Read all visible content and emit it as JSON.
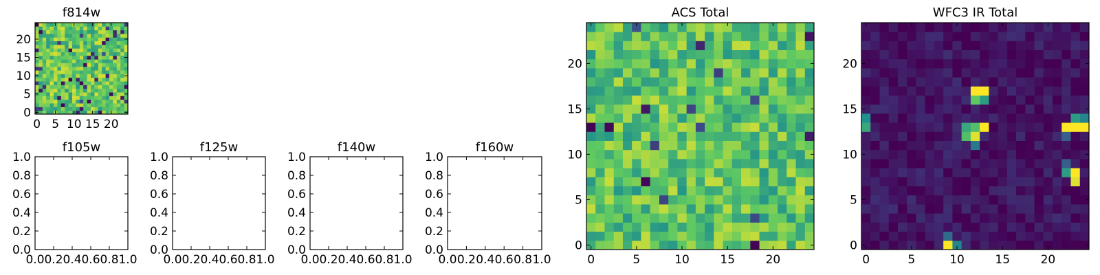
{
  "colormap": [
    "#440154",
    "#3b528b",
    "#21918c",
    "#5ec962",
    "#fde725"
  ],
  "chart_data": [
    {
      "type": "heatmap",
      "title": "f814w",
      "x_ticks": [
        "0",
        "5",
        "10",
        "15",
        "20"
      ],
      "y_ticks": [
        "0",
        "5",
        "10",
        "15",
        "20"
      ],
      "xlim": [
        -0.5,
        24.5
      ],
      "ylim": [
        -0.5,
        24.5
      ],
      "rows": 25,
      "cols": 25,
      "seed": 11,
      "base": 0.74,
      "spread": 0.2,
      "low_fraction": 0.07,
      "hot": []
    },
    {
      "type": "empty",
      "title": "f105w",
      "x_ticks": [
        "0.0",
        "0.2",
        "0.4",
        "0.6",
        "0.8",
        "1.0"
      ],
      "y_ticks": [
        "0.0",
        "0.2",
        "0.4",
        "0.6",
        "0.8",
        "1.0"
      ],
      "xlim": [
        0,
        1
      ],
      "ylim": [
        0,
        1
      ]
    },
    {
      "type": "empty",
      "title": "f125w",
      "x_ticks": [
        "0.0",
        "0.2",
        "0.4",
        "0.6",
        "0.8",
        "1.0"
      ],
      "y_ticks": [
        "0.0",
        "0.2",
        "0.4",
        "0.6",
        "0.8",
        "1.0"
      ],
      "xlim": [
        0,
        1
      ],
      "ylim": [
        0,
        1
      ]
    },
    {
      "type": "empty",
      "title": "f140w",
      "x_ticks": [
        "0.0",
        "0.2",
        "0.4",
        "0.6",
        "0.8",
        "1.0"
      ],
      "y_ticks": [
        "0.0",
        "0.2",
        "0.4",
        "0.6",
        "0.8",
        "1.0"
      ],
      "xlim": [
        0,
        1
      ],
      "ylim": [
        0,
        1
      ]
    },
    {
      "type": "empty",
      "title": "f160w",
      "x_ticks": [
        "0.0",
        "0.2",
        "0.4",
        "0.6",
        "0.8",
        "1.0"
      ],
      "y_ticks": [
        "0.0",
        "0.2",
        "0.4",
        "0.6",
        "0.8",
        "1.0"
      ],
      "xlim": [
        0,
        1
      ],
      "ylim": [
        0,
        1
      ]
    },
    {
      "type": "heatmap",
      "title": "ACS Total",
      "x_ticks": [
        "0",
        "5",
        "10",
        "15",
        "20"
      ],
      "y_ticks": [
        "0",
        "5",
        "10",
        "15",
        "20"
      ],
      "xlim": [
        -0.5,
        24.5
      ],
      "ylim": [
        -0.5,
        24.5
      ],
      "rows": 25,
      "cols": 25,
      "seed": 29,
      "base": 0.72,
      "spread": 0.2,
      "low_fraction": 0.02,
      "hot": []
    },
    {
      "type": "heatmap",
      "title": "WFC3 IR Total",
      "x_ticks": [
        "0",
        "5",
        "10",
        "15",
        "20"
      ],
      "y_ticks": [
        "0",
        "5",
        "10",
        "15",
        "20"
      ],
      "xlim": [
        -0.5,
        24.5
      ],
      "ylim": [
        -0.5,
        24.5
      ],
      "rows": 25,
      "cols": 25,
      "seed": 53,
      "base": 0.06,
      "spread": 0.08,
      "low_fraction": 0.0,
      "hot": [
        {
          "x": 12,
          "y": 17,
          "v": 1.0
        },
        {
          "x": 13,
          "y": 17,
          "v": 1.0
        },
        {
          "x": 12,
          "y": 16,
          "v": 0.75
        },
        {
          "x": 13,
          "y": 16,
          "v": 0.55
        },
        {
          "x": 11,
          "y": 13,
          "v": 0.6
        },
        {
          "x": 12,
          "y": 13,
          "v": 0.7
        },
        {
          "x": 13,
          "y": 13,
          "v": 1.0
        },
        {
          "x": 11,
          "y": 12,
          "v": 0.7
        },
        {
          "x": 12,
          "y": 12,
          "v": 0.95
        },
        {
          "x": 12,
          "y": 11,
          "v": 0.4
        },
        {
          "x": 0,
          "y": 14,
          "v": 0.5
        },
        {
          "x": 0,
          "y": 13,
          "v": 0.6
        },
        {
          "x": 22,
          "y": 13,
          "v": 1.0
        },
        {
          "x": 23,
          "y": 13,
          "v": 1.0
        },
        {
          "x": 24,
          "y": 13,
          "v": 1.0
        },
        {
          "x": 23,
          "y": 14,
          "v": 0.55
        },
        {
          "x": 24,
          "y": 14,
          "v": 0.45
        },
        {
          "x": 22,
          "y": 12,
          "v": 0.3
        },
        {
          "x": 22,
          "y": 8,
          "v": 0.55
        },
        {
          "x": 23,
          "y": 8,
          "v": 1.0
        },
        {
          "x": 23,
          "y": 7,
          "v": 0.95
        },
        {
          "x": 22,
          "y": 9,
          "v": 0.3
        },
        {
          "x": 9,
          "y": 0,
          "v": 1.0
        },
        {
          "x": 10,
          "y": 0,
          "v": 0.45
        },
        {
          "x": 9,
          "y": 1,
          "v": 0.35
        }
      ]
    }
  ]
}
